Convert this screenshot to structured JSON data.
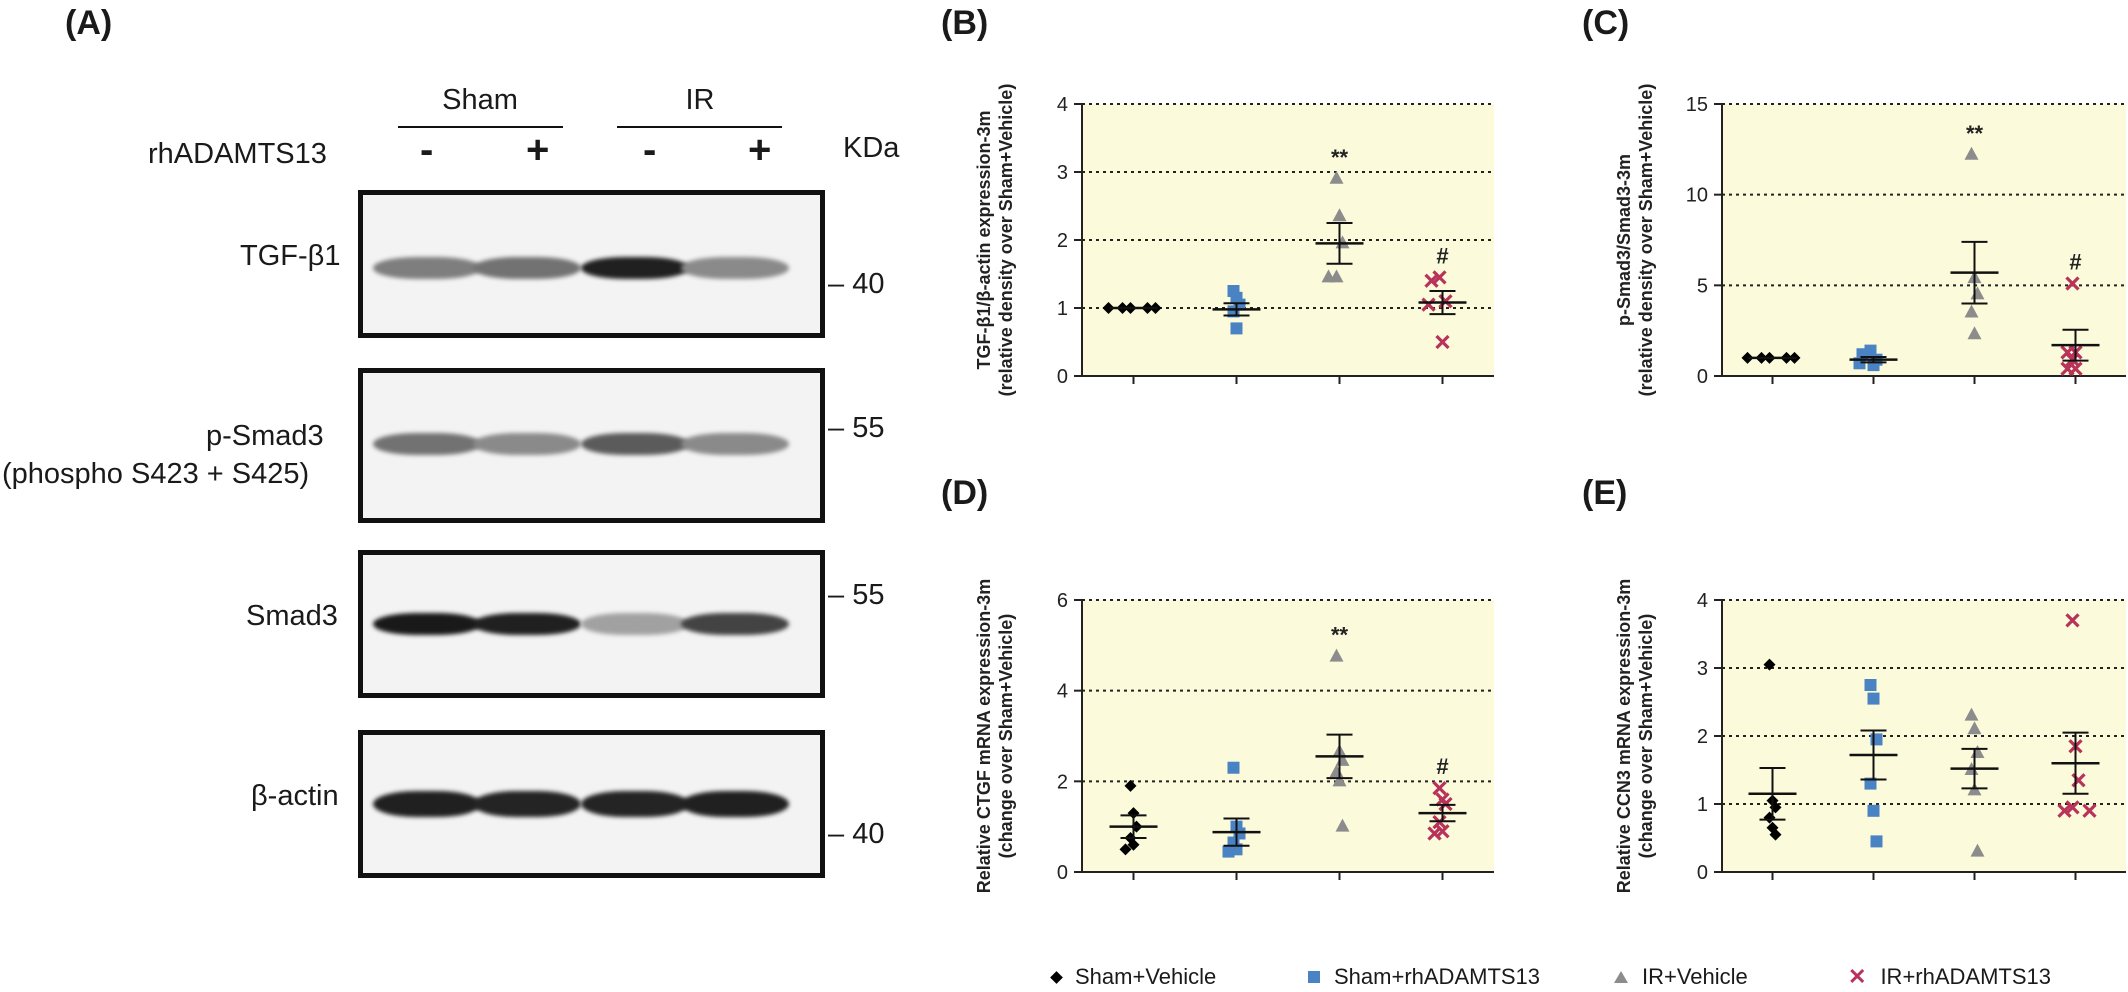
{
  "panels": {
    "A": "(A)",
    "B": "(B)",
    "C": "(C)",
    "D": "(D)",
    "E": "(E)"
  },
  "blot": {
    "groups": [
      "Sham",
      "IR"
    ],
    "treatment_label": "rhADAMTS13",
    "signs": [
      "-",
      "+",
      "-",
      "+"
    ],
    "kda_label": "KDa",
    "rows": [
      {
        "label": "TGF-β1",
        "markers": [
          "40"
        ]
      },
      {
        "label": "p-Smad3",
        "label2": "(phospho S423 + S425)",
        "markers": [
          "55"
        ]
      },
      {
        "label": "Smad3",
        "markers": [
          "55"
        ]
      },
      {
        "label": "β-actin",
        "markers": [
          "40"
        ]
      }
    ],
    "band_intensity": [
      [
        0.55,
        0.6,
        0.95,
        0.5
      ],
      [
        0.6,
        0.5,
        0.7,
        0.5
      ],
      [
        0.98,
        0.95,
        0.4,
        0.8
      ],
      [
        0.95,
        0.93,
        0.93,
        0.95
      ]
    ]
  },
  "colors": {
    "plot_bg": "#fbfbdc",
    "sham_vehicle": "#000000",
    "sham_rh": "#4a83c4",
    "ir_vehicle": "#8c8c8c",
    "ir_rh": "#b8325a"
  },
  "legend": [
    {
      "label": "Sham+Vehicle",
      "symbol": "diamond",
      "color": "#000000"
    },
    {
      "label": "Sham+rhADAMTS13",
      "symbol": "square",
      "color": "#4a83c4"
    },
    {
      "label": "IR+Vehicle",
      "symbol": "triangle",
      "color": "#8c8c8c"
    },
    {
      "label": "IR+rhADAMTS13",
      "symbol": "cross",
      "color": "#b8325a"
    }
  ],
  "chart_data": [
    {
      "id": "B",
      "type": "scatter",
      "ylabel": [
        "TGF-β1/β-actin expression-3m",
        "(relative density over Sham+Vehicle)"
      ],
      "ylim": [
        0,
        4
      ],
      "yticks": [
        0,
        1,
        2,
        3,
        4
      ],
      "grid": true,
      "groups": [
        {
          "name": "Sham+Vehicle",
          "values": [
            1,
            1,
            1,
            1,
            1
          ],
          "mean": 1.0,
          "sem": 0.0,
          "annotation": ""
        },
        {
          "name": "Sham+rhADAMTS13",
          "values": [
            1.25,
            1.15,
            1.05,
            0.95,
            0.7
          ],
          "mean": 0.98,
          "sem": 0.09,
          "annotation": ""
        },
        {
          "name": "IR+Vehicle",
          "values": [
            2.9,
            2.35,
            1.95,
            1.45,
            1.45
          ],
          "mean": 1.95,
          "sem": 0.3,
          "annotation": "**"
        },
        {
          "name": "IR+rhADAMTS13",
          "values": [
            1.45,
            1.4,
            1.1,
            1.05,
            0.5
          ],
          "mean": 1.08,
          "sem": 0.17,
          "annotation": "#"
        }
      ]
    },
    {
      "id": "C",
      "type": "scatter",
      "ylabel": [
        "p-Smad3/Smad3-3m",
        "(relative density over Sham+Vehicle)"
      ],
      "ylim": [
        0,
        15
      ],
      "yticks": [
        0,
        5,
        10,
        15
      ],
      "grid": true,
      "groups": [
        {
          "name": "Sham+Vehicle",
          "values": [
            1,
            1,
            1,
            1,
            1
          ],
          "mean": 1.0,
          "sem": 0.0,
          "annotation": ""
        },
        {
          "name": "Sham+rhADAMTS13",
          "values": [
            1.4,
            1.2,
            0.9,
            0.7,
            0.6
          ],
          "mean": 0.9,
          "sem": 0.15,
          "annotation": ""
        },
        {
          "name": "IR+Vehicle",
          "values": [
            12.2,
            5.4,
            4.5,
            3.5,
            2.3
          ],
          "mean": 5.7,
          "sem": 1.7,
          "annotation": "**"
        },
        {
          "name": "IR+rhADAMTS13",
          "values": [
            5.1,
            1.3,
            1.3,
            0.9,
            0.4,
            0.4
          ],
          "mean": 1.7,
          "sem": 0.85,
          "annotation": "#"
        }
      ]
    },
    {
      "id": "D",
      "type": "scatter",
      "ylabel": [
        "Relative CTGF mRNA expression-3m",
        "(change over Sham+Vehicle)"
      ],
      "ylim": [
        0,
        6
      ],
      "yticks": [
        0,
        2,
        4,
        6
      ],
      "grid": true,
      "groups": [
        {
          "name": "Sham+Vehicle",
          "values": [
            1.9,
            1.3,
            1.0,
            0.75,
            0.6,
            0.5
          ],
          "mean": 1.0,
          "sem": 0.25,
          "annotation": ""
        },
        {
          "name": "Sham+rhADAMTS13",
          "values": [
            2.3,
            1.0,
            0.85,
            0.65,
            0.5,
            0.45
          ],
          "mean": 0.88,
          "sem": 0.3,
          "annotation": ""
        },
        {
          "name": "IR+Vehicle",
          "values": [
            4.75,
            2.65,
            2.45,
            2.2,
            2.0,
            1.0
          ],
          "mean": 2.55,
          "sem": 0.48,
          "annotation": "**"
        },
        {
          "name": "IR+rhADAMTS13",
          "values": [
            1.85,
            1.6,
            1.5,
            1.1,
            0.9,
            0.85
          ],
          "mean": 1.3,
          "sem": 0.18,
          "annotation": "#"
        }
      ]
    },
    {
      "id": "E",
      "type": "scatter",
      "ylabel": [
        "Relative CCN3 mRNA expression-3m",
        "(change over Sham+Vehicle)"
      ],
      "ylim": [
        0,
        4
      ],
      "yticks": [
        0,
        1,
        2,
        3,
        4
      ],
      "grid": true,
      "groups": [
        {
          "name": "Sham+Vehicle",
          "values": [
            3.05,
            1.05,
            0.95,
            0.8,
            0.65,
            0.55
          ],
          "mean": 1.15,
          "sem": 0.38,
          "annotation": ""
        },
        {
          "name": "Sham+rhADAMTS13",
          "values": [
            2.75,
            2.55,
            1.95,
            1.3,
            0.9,
            0.45
          ],
          "mean": 1.72,
          "sem": 0.36,
          "annotation": ""
        },
        {
          "name": "IR+Vehicle",
          "values": [
            2.3,
            2.1,
            1.75,
            1.5,
            1.2,
            0.3
          ],
          "mean": 1.52,
          "sem": 0.29,
          "annotation": ""
        },
        {
          "name": "IR+rhADAMTS13",
          "values": [
            3.7,
            1.85,
            1.35,
            0.95,
            0.9,
            0.9
          ],
          "mean": 1.6,
          "sem": 0.45,
          "annotation": ""
        }
      ]
    }
  ]
}
